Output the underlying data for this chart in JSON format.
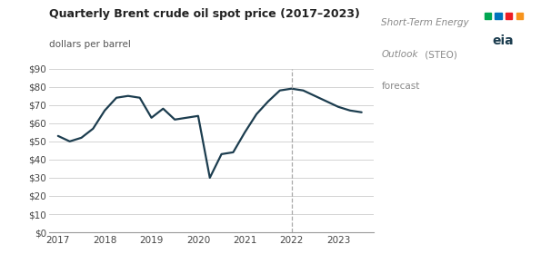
{
  "title": "Quarterly Brent crude oil spot price (2017–2023)",
  "ylabel": "dollars per barrel",
  "line_color": "#1c3d4f",
  "dashed_line_color": "#aaaaaa",
  "background_color": "#ffffff",
  "grid_color": "#cccccc",
  "forecast_x": 2022.0,
  "xlim": [
    2016.8,
    2023.75
  ],
  "ylim": [
    0,
    90
  ],
  "yticks": [
    0,
    10,
    20,
    30,
    40,
    50,
    60,
    70,
    80,
    90
  ],
  "xticks": [
    2017,
    2018,
    2019,
    2020,
    2021,
    2022,
    2023
  ],
  "x": [
    2017.0,
    2017.25,
    2017.5,
    2017.75,
    2018.0,
    2018.25,
    2018.5,
    2018.75,
    2019.0,
    2019.25,
    2019.5,
    2019.75,
    2020.0,
    2020.25,
    2020.5,
    2020.75,
    2021.0,
    2021.25,
    2021.5,
    2021.75,
    2022.0,
    2022.25,
    2022.5,
    2022.75,
    2023.0,
    2023.25,
    2023.5
  ],
  "y": [
    53,
    50,
    52,
    57,
    67,
    74,
    75,
    74,
    63,
    68,
    62,
    63,
    64,
    30,
    43,
    44,
    55,
    65,
    72,
    78,
    79,
    78,
    75,
    72,
    69,
    67,
    66
  ]
}
